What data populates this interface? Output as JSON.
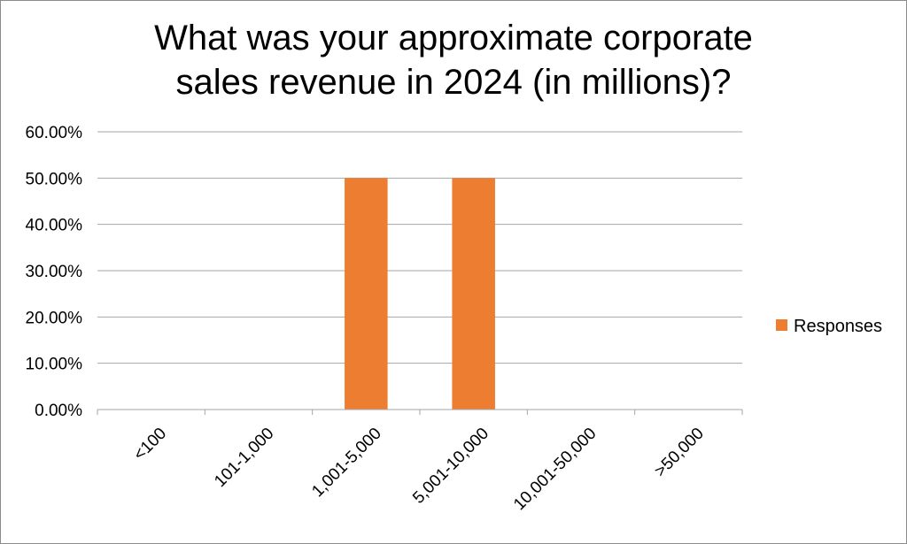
{
  "chart_data": {
    "type": "bar",
    "title_lines": [
      "What was your approximate corporate",
      "sales revenue in 2024 (in millions)?"
    ],
    "categories": [
      "<100",
      "101-1,000",
      "1,001-5,000",
      "5,001-10,000",
      "10,001-50,000",
      ">50,000"
    ],
    "series": [
      {
        "name": "Responses",
        "values": [
          0,
          0,
          0.5,
          0.5,
          0,
          0
        ],
        "color": "#ED7D31"
      }
    ],
    "y_ticks": [
      "0.00%",
      "10.00%",
      "20.00%",
      "30.00%",
      "40.00%",
      "50.00%",
      "60.00%"
    ],
    "ylim": [
      0,
      0.6
    ],
    "y_tick_step": 0.1,
    "grid": true,
    "legend_position": "right",
    "colors": {
      "gridline": "#a6a6a6",
      "axis": "#a6a6a6",
      "bar": "#ED7D31"
    }
  }
}
